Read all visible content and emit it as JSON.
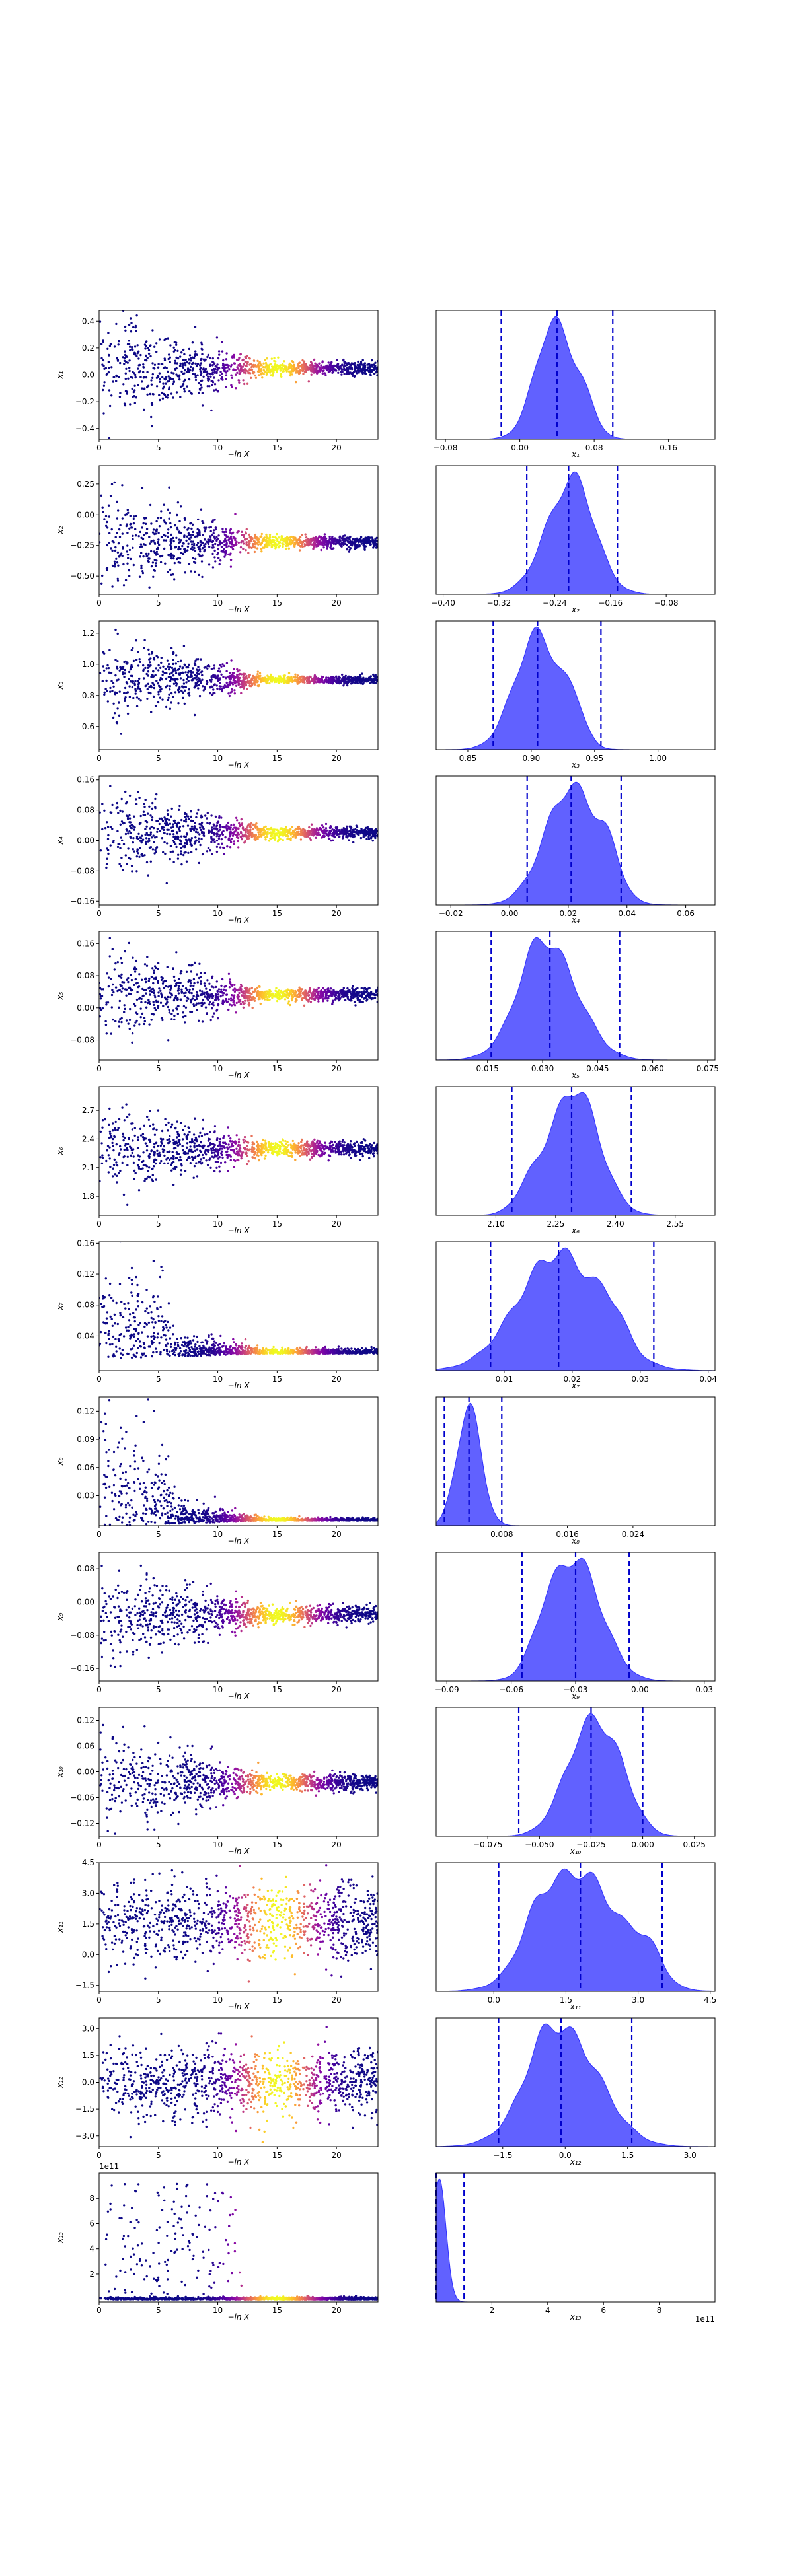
{
  "chart_data": [
    {
      "type": "scatter",
      "title": "",
      "xlabel": "−ln X",
      "ylabel": "x₁",
      "xlim": [
        0,
        23.5
      ],
      "ylim": [
        -0.48,
        0.48
      ],
      "yticks": [
        -0.4,
        -0.2,
        0.0,
        0.2,
        0.4
      ],
      "yticklabels": [
        "−0.4",
        "−0.2",
        "0.0",
        "0.2",
        "0.4"
      ],
      "xticks": [
        0,
        5,
        10,
        15,
        20
      ],
      "xticklabels": [
        "0",
        "5",
        "10",
        "15",
        "20"
      ],
      "center": 0.05,
      "spread_early": 0.2,
      "spread_late": 0.025,
      "color_by": "importance weight",
      "colormap": "plasma"
    },
    {
      "type": "area",
      "title": "",
      "xlabel": "x₁",
      "xlim": [
        -0.09,
        0.21
      ],
      "xticks": [
        -0.08,
        0.0,
        0.08,
        0.16
      ],
      "xticklabels": [
        "−0.08",
        "0.00",
        "0.08",
        "0.16"
      ],
      "mean": 0.04,
      "sd": 0.022,
      "bumps": [
        [
          0.03,
          0.015,
          0.3
        ],
        [
          0.07,
          0.012,
          0.2
        ]
      ],
      "quantile_lines": [
        -0.02,
        0.04,
        0.1
      ],
      "fill_color": "#0000ff"
    },
    {
      "type": "scatter",
      "title": "",
      "xlabel": "−ln X",
      "ylabel": "x₂",
      "xlim": [
        0,
        23.5
      ],
      "ylim": [
        -0.65,
        0.4
      ],
      "yticks": [
        -0.5,
        -0.25,
        0.0,
        0.25
      ],
      "yticklabels": [
        "−0.50",
        "−0.25",
        "0.00",
        "0.25"
      ],
      "xticks": [
        0,
        5,
        10,
        15,
        20
      ],
      "xticklabels": [
        "0",
        "5",
        "10",
        "15",
        "20"
      ],
      "center": -0.22,
      "spread_early": 0.22,
      "spread_late": 0.025,
      "color_by": "importance weight",
      "colormap": "plasma"
    },
    {
      "type": "area",
      "title": "",
      "xlabel": "x₂",
      "xlim": [
        -0.41,
        -0.01
      ],
      "xticks": [
        -0.4,
        -0.32,
        -0.24,
        -0.16,
        -0.08
      ],
      "xticklabels": [
        "−0.40",
        "−0.32",
        "−0.24",
        "−0.16",
        "−0.08"
      ],
      "mean": -0.22,
      "sd": 0.035,
      "bumps": [
        [
          -0.2,
          0.02,
          0.2
        ]
      ],
      "quantile_lines": [
        -0.28,
        -0.22,
        -0.15
      ],
      "fill_color": "#0000ff"
    },
    {
      "type": "scatter",
      "title": "",
      "xlabel": "−ln X",
      "ylabel": "x₃",
      "xlim": [
        0,
        23.5
      ],
      "ylim": [
        0.45,
        1.28
      ],
      "yticks": [
        0.6,
        0.8,
        1.0,
        1.2
      ],
      "yticklabels": [
        "0.6",
        "0.8",
        "1.0",
        "1.2"
      ],
      "xticks": [
        0,
        5,
        10,
        15,
        20
      ],
      "xticklabels": [
        "0",
        "5",
        "10",
        "15",
        "20"
      ],
      "center": 0.9,
      "spread_early": 0.15,
      "spread_late": 0.012,
      "color_by": "importance weight",
      "colormap": "plasma"
    },
    {
      "type": "area",
      "title": "",
      "xlabel": "x₃",
      "xlim": [
        0.825,
        1.045
      ],
      "xticks": [
        0.85,
        0.9,
        0.95,
        1.0
      ],
      "xticklabels": [
        "0.85",
        "0.90",
        "0.95",
        "1.00"
      ],
      "mean": 0.905,
      "sd": 0.018,
      "bumps": [
        [
          0.935,
          0.008,
          0.25
        ]
      ],
      "quantile_lines": [
        0.87,
        0.905,
        0.955
      ],
      "fill_color": "#0000ff"
    },
    {
      "type": "scatter",
      "title": "",
      "xlabel": "−ln X",
      "ylabel": "x₄",
      "xlim": [
        0,
        23.5
      ],
      "ylim": [
        -0.17,
        0.17
      ],
      "yticks": [
        -0.16,
        -0.08,
        0.0,
        0.08,
        0.16
      ],
      "yticklabels": [
        "−0.16",
        "−0.08",
        "0.00",
        "0.08",
        "0.16"
      ],
      "xticks": [
        0,
        5,
        10,
        15,
        20
      ],
      "xticklabels": [
        "0",
        "5",
        "10",
        "15",
        "20"
      ],
      "center": 0.02,
      "spread_early": 0.06,
      "spread_late": 0.008,
      "color_by": "importance weight",
      "colormap": "plasma"
    },
    {
      "type": "area",
      "title": "",
      "xlabel": "x₄",
      "xlim": [
        -0.025,
        0.07
      ],
      "xticks": [
        -0.02,
        0.0,
        0.02,
        0.04,
        0.06
      ],
      "xticklabels": [
        "−0.02",
        "0.00",
        "0.02",
        "0.04",
        "0.06"
      ],
      "mean": 0.021,
      "sd": 0.009,
      "bumps": [
        [
          0.034,
          0.004,
          0.25
        ]
      ],
      "quantile_lines": [
        0.006,
        0.021,
        0.038
      ],
      "fill_color": "#0000ff"
    },
    {
      "type": "scatter",
      "title": "",
      "xlabel": "−ln X",
      "ylabel": "x₅",
      "xlim": [
        0,
        23.5
      ],
      "ylim": [
        -0.13,
        0.19
      ],
      "yticks": [
        -0.08,
        0.0,
        0.08,
        0.16
      ],
      "yticklabels": [
        "−0.08",
        "0.00",
        "0.08",
        "0.16"
      ],
      "xticks": [
        0,
        5,
        10,
        15,
        20
      ],
      "xticklabels": [
        "0",
        "5",
        "10",
        "15",
        "20"
      ],
      "center": 0.032,
      "spread_early": 0.06,
      "spread_late": 0.008,
      "color_by": "importance weight",
      "colormap": "plasma"
    },
    {
      "type": "area",
      "title": "",
      "xlabel": "x₅",
      "xlim": [
        0.001,
        0.077
      ],
      "xticks": [
        0.015,
        0.03,
        0.045,
        0.06,
        0.075
      ],
      "xticklabels": [
        "0.015",
        "0.030",
        "0.045",
        "0.060",
        "0.075"
      ],
      "mean": 0.032,
      "sd": 0.008,
      "bumps": [
        [
          0.027,
          0.004,
          0.2
        ]
      ],
      "quantile_lines": [
        0.016,
        0.032,
        0.051
      ],
      "fill_color": "#0000ff"
    },
    {
      "type": "scatter",
      "title": "",
      "xlabel": "−ln X",
      "ylabel": "x₆",
      "xlim": [
        0,
        23.5
      ],
      "ylim": [
        1.6,
        2.95
      ],
      "yticks": [
        1.8,
        2.1,
        2.4,
        2.7
      ],
      "yticklabels": [
        "1.8",
        "2.1",
        "2.4",
        "2.7"
      ],
      "xticks": [
        0,
        5,
        10,
        15,
        20
      ],
      "xticklabels": [
        "0",
        "5",
        "10",
        "15",
        "20"
      ],
      "center": 2.3,
      "spread_early": 0.22,
      "spread_late": 0.04,
      "color_by": "importance weight",
      "colormap": "plasma"
    },
    {
      "type": "area",
      "title": "",
      "xlabel": "x₆",
      "xlim": [
        1.95,
        2.65
      ],
      "xticks": [
        2.1,
        2.25,
        2.4,
        2.55
      ],
      "xticklabels": [
        "2.10",
        "2.25",
        "2.40",
        "2.55"
      ],
      "mean": 2.3,
      "sd": 0.06,
      "bumps": [
        [
          2.19,
          0.04,
          0.2
        ]
      ],
      "quantile_lines": [
        2.14,
        2.29,
        2.44
      ],
      "fill_color": "#0000ff"
    },
    {
      "type": "scatter",
      "title": "",
      "xlabel": "−ln X",
      "ylabel": "x₇",
      "xlim": [
        0,
        23.5
      ],
      "ylim": [
        -0.005,
        0.162
      ],
      "yticks": [
        0.04,
        0.08,
        0.12,
        0.16
      ],
      "yticklabels": [
        "0.04",
        "0.08",
        "0.12",
        "0.16"
      ],
      "xticks": [
        0,
        5,
        10,
        15,
        20
      ],
      "xticklabels": [
        "0",
        "5",
        "10",
        "15",
        "20"
      ],
      "center": 0.018,
      "spread_early": 0.04,
      "spread_late": 0.005,
      "color_by": "importance weight",
      "colormap": "plasma"
    },
    {
      "type": "area",
      "title": "",
      "xlabel": "x₇",
      "xlim": [
        0.0,
        0.041
      ],
      "xticks": [
        0.01,
        0.02,
        0.03,
        0.04
      ],
      "xticklabels": [
        "0.01",
        "0.02",
        "0.03",
        "0.04"
      ],
      "mean": 0.018,
      "sd": 0.006,
      "bumps": [
        [
          0.026,
          0.002,
          0.2
        ]
      ],
      "quantile_lines": [
        0.008,
        0.018,
        0.032
      ],
      "fill_color": "#0000ff"
    },
    {
      "type": "scatter",
      "title": "",
      "xlabel": "−ln X",
      "ylabel": "x₈",
      "xlim": [
        0,
        23.5
      ],
      "ylim": [
        -0.002,
        0.135
      ],
      "yticks": [
        0.03,
        0.06,
        0.09,
        0.12
      ],
      "yticklabels": [
        "0.03",
        "0.06",
        "0.09",
        "0.12"
      ],
      "xticks": [
        0,
        5,
        10,
        15,
        20
      ],
      "xticklabels": [
        "0",
        "5",
        "10",
        "15",
        "20"
      ],
      "center": 0.004,
      "spread_early": 0.035,
      "spread_late": 0.002,
      "color_by": "importance weight",
      "colormap": "plasma"
    },
    {
      "type": "area",
      "title": "",
      "xlabel": "x₈",
      "xlim": [
        0.0,
        0.034
      ],
      "xticks": [
        0.008,
        0.016,
        0.024
      ],
      "xticklabels": [
        "0.008",
        "0.016",
        "0.024"
      ],
      "mean": 0.004,
      "sd": 0.0015,
      "bumps": [],
      "quantile_lines": [
        0.001,
        0.004,
        0.008
      ],
      "fill_color": "#0000ff"
    },
    {
      "type": "scatter",
      "title": "",
      "xlabel": "−ln X",
      "ylabel": "x₉",
      "xlim": [
        0,
        23.5
      ],
      "ylim": [
        -0.19,
        0.12
      ],
      "yticks": [
        -0.16,
        -0.08,
        0.0,
        0.08
      ],
      "yticklabels": [
        "−0.16",
        "−0.08",
        "0.00",
        "0.08"
      ],
      "xticks": [
        0,
        5,
        10,
        15,
        20
      ],
      "xticklabels": [
        "0",
        "5",
        "10",
        "15",
        "20"
      ],
      "center": -0.03,
      "spread_early": 0.06,
      "spread_late": 0.01,
      "color_by": "importance weight",
      "colormap": "plasma"
    },
    {
      "type": "area",
      "title": "",
      "xlabel": "x₉",
      "xlim": [
        -0.095,
        0.035
      ],
      "xticks": [
        -0.09,
        -0.06,
        -0.03,
        0.0,
        0.03
      ],
      "xticklabels": [
        "−0.09",
        "−0.06",
        "−0.03",
        "0.00",
        "0.03"
      ],
      "mean": -0.03,
      "sd": 0.012,
      "bumps": [
        [
          -0.045,
          0.006,
          0.2
        ]
      ],
      "quantile_lines": [
        -0.055,
        -0.03,
        -0.005
      ],
      "fill_color": "#0000ff"
    },
    {
      "type": "scatter",
      "title": "",
      "xlabel": "−ln X",
      "ylabel": "x₁₀",
      "xlim": [
        0,
        23.5
      ],
      "ylim": [
        -0.15,
        0.15
      ],
      "yticks": [
        -0.12,
        -0.06,
        0.0,
        0.06,
        0.12
      ],
      "yticklabels": [
        "−0.12",
        "−0.06",
        "0.00",
        "0.06",
        "0.12"
      ],
      "xticks": [
        0,
        5,
        10,
        15,
        20
      ],
      "xticklabels": [
        "0",
        "5",
        "10",
        "15",
        "20"
      ],
      "center": -0.025,
      "spread_early": 0.06,
      "spread_late": 0.01,
      "color_by": "importance weight",
      "colormap": "plasma"
    },
    {
      "type": "area",
      "title": "",
      "xlabel": "x₁₀",
      "xlim": [
        -0.1,
        0.035
      ],
      "xticks": [
        -0.075,
        -0.05,
        -0.025,
        0.0,
        0.025
      ],
      "xticklabels": [
        "−0.075",
        "−0.050",
        "−0.025",
        "0.000",
        "0.025"
      ],
      "mean": -0.025,
      "sd": 0.012,
      "bumps": [
        [
          -0.01,
          0.008,
          0.2
        ]
      ],
      "quantile_lines": [
        -0.06,
        -0.025,
        0.0
      ],
      "fill_color": "#0000ff"
    },
    {
      "type": "scatter",
      "title": "",
      "xlabel": "−ln X",
      "ylabel": "x₁₁",
      "xlim": [
        0,
        23.5
      ],
      "ylim": [
        -1.8,
        4.5
      ],
      "yticks": [
        -1.5,
        0.0,
        1.5,
        3.0,
        4.5
      ],
      "yticklabels": [
        "−1.5",
        "0.0",
        "1.5",
        "3.0",
        "4.5"
      ],
      "xticks": [
        0,
        5,
        10,
        15,
        20
      ],
      "xticklabels": [
        "0",
        "5",
        "10",
        "15",
        "20"
      ],
      "center": 1.6,
      "spread_early": 1.1,
      "spread_late": 0.9,
      "color_by": "importance weight",
      "colormap": "plasma"
    },
    {
      "type": "area",
      "title": "",
      "xlabel": "x₁₁",
      "xlim": [
        -1.2,
        4.6
      ],
      "xticks": [
        0.0,
        1.5,
        3.0,
        4.5
      ],
      "xticklabels": [
        "0.0",
        "1.5",
        "3.0",
        "4.5"
      ],
      "mean": 1.8,
      "sd": 0.8,
      "bumps": [
        [
          0.9,
          0.35,
          0.25
        ],
        [
          3.2,
          0.3,
          0.25
        ]
      ],
      "quantile_lines": [
        0.1,
        1.8,
        3.5
      ],
      "fill_color": "#0000ff"
    },
    {
      "type": "scatter",
      "title": "",
      "xlabel": "−ln X",
      "ylabel": "x₁₂",
      "xlim": [
        0,
        23.5
      ],
      "ylim": [
        -3.6,
        3.6
      ],
      "yticks": [
        -3.0,
        -1.5,
        0.0,
        1.5,
        3.0
      ],
      "yticklabels": [
        "−3.0",
        "−1.5",
        "0.0",
        "1.5",
        "3.0"
      ],
      "xticks": [
        0,
        5,
        10,
        15,
        20
      ],
      "xticklabels": [
        "0",
        "5",
        "10",
        "15",
        "20"
      ],
      "center": 0.0,
      "spread_early": 1.0,
      "spread_late": 0.9,
      "color_by": "importance weight",
      "colormap": "plasma"
    },
    {
      "type": "area",
      "title": "",
      "xlabel": "x₁₂",
      "xlim": [
        -3.1,
        3.6
      ],
      "xticks": [
        -1.5,
        0.0,
        1.5,
        3.0
      ],
      "xticklabels": [
        "−1.5",
        "0.0",
        "1.5",
        "3.0"
      ],
      "mean": 0.0,
      "sd": 0.85,
      "bumps": [
        [
          -0.6,
          0.35,
          0.2
        ]
      ],
      "quantile_lines": [
        -1.6,
        -0.1,
        1.6
      ],
      "fill_color": "#0000ff"
    },
    {
      "type": "scatter",
      "title": "",
      "xlabel": "−ln X",
      "ylabel": "x₁₃",
      "xlim": [
        0,
        23.5
      ],
      "ylim": [
        -0.2,
        10.0
      ],
      "yticks": [
        2,
        4,
        6,
        8
      ],
      "yticklabels": [
        "2",
        "4",
        "6",
        "8"
      ],
      "xticks": [
        0,
        5,
        10,
        15,
        20
      ],
      "xticklabels": [
        "0",
        "5",
        "10",
        "15",
        "20"
      ],
      "offset_text": "1e11",
      "center": 0.05,
      "spread_early": 2.5,
      "spread_late": 0.05,
      "color_by": "importance weight",
      "colormap": "plasma"
    },
    {
      "type": "area",
      "title": "",
      "xlabel": "x₁₃",
      "xlim": [
        0.0,
        10.0
      ],
      "xticks": [
        2,
        4,
        6,
        8
      ],
      "xticklabels": [
        "2",
        "4",
        "6",
        "8"
      ],
      "offset_text": "1e11",
      "mean": 0.1,
      "sd": 0.25,
      "bumps": [],
      "quantile_lines": [
        0.0,
        1.0
      ],
      "fill_color": "#0000ff"
    }
  ]
}
